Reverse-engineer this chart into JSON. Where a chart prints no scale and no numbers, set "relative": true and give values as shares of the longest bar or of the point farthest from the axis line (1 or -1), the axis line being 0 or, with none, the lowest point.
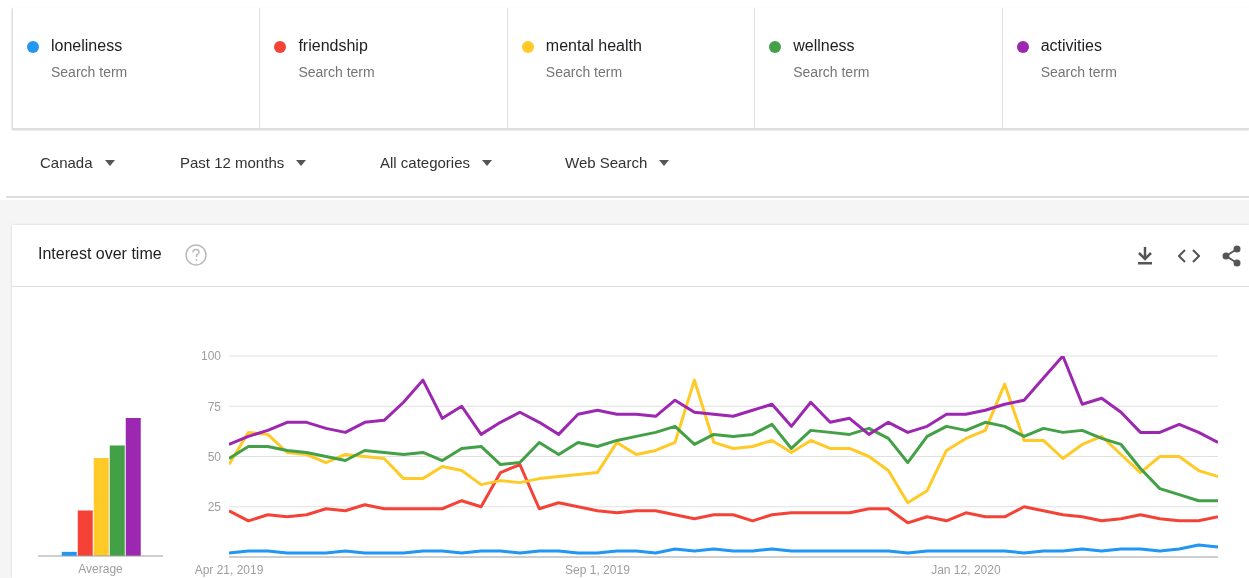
{
  "chart_data": [
    {
      "type": "bar",
      "relative": true,
      "categories": [
        "Average"
      ],
      "series": [
        {
          "color": "#2196f3",
          "values": [
            0.03
          ]
        },
        {
          "color": "#f44336",
          "values": [
            0.33
          ]
        },
        {
          "color": "#ffca28",
          "values": [
            0.71
          ]
        },
        {
          "color": "#43a047",
          "values": [
            0.8
          ]
        },
        {
          "color": "#9c27b0",
          "values": [
            1
          ]
        }
      ]
    },
    {
      "type": "line",
      "title": "Interest over time",
      "legend": "top",
      "grid": "y",
      "marker": "none",
      "line_style": "solid",
      "annotations": [
        "Search term",
        "Search term",
        "Search term",
        "Search term",
        "Search term",
        "Canada",
        "Past 12 months",
        "All categories",
        "Web Search"
      ],
      "x": [
        "2019-04-21",
        "2019-04-28",
        "2019-05-05",
        "2019-05-12",
        "2019-05-19",
        "2019-05-26",
        "2019-06-02",
        "2019-06-09",
        "2019-06-16",
        "2019-06-23",
        "2019-06-30",
        "2019-07-07",
        "2019-07-14",
        "2019-07-21",
        "2019-07-28",
        "2019-08-04",
        "2019-08-11",
        "2019-08-18",
        "2019-08-25",
        "2019-09-01",
        "2019-09-08",
        "2019-09-15",
        "2019-09-22",
        "2019-09-29",
        "2019-10-06",
        "2019-10-13",
        "2019-10-20",
        "2019-10-27",
        "2019-11-03",
        "2019-11-10",
        "2019-11-17",
        "2019-11-24",
        "2019-12-01",
        "2019-12-08",
        "2019-12-15",
        "2019-12-22",
        "2019-12-29",
        "2020-01-05",
        "2020-01-12",
        "2020-01-19",
        "2020-01-26",
        "2020-02-02",
        "2020-02-09",
        "2020-02-16",
        "2020-02-23",
        "2020-03-01",
        "2020-03-08",
        "2020-03-15",
        "2020-03-22",
        "2020-03-29",
        "2020-04-05",
        "2020-04-12"
      ],
      "xlim": [
        "2019-04-21",
        "2020-04-12"
      ],
      "xticks": [
        {
          "value": "2019-04-21",
          "label": "Apr 21, 2019"
        },
        {
          "value": "2019-09-01",
          "label": "Sep 1, 2019"
        },
        {
          "value": "2020-01-12",
          "label": "Jan 12, 2020"
        }
      ],
      "ylim": [
        0,
        100
      ],
      "yticks": [
        25,
        50,
        75,
        100
      ],
      "series": [
        {
          "name": "loneliness",
          "color": "#2196f3",
          "values": [
            2,
            3,
            3,
            2,
            2,
            2,
            3,
            2,
            2,
            2,
            3,
            3,
            2,
            3,
            3,
            2,
            3,
            3,
            2,
            2,
            3,
            3,
            2,
            4,
            3,
            4,
            3,
            3,
            4,
            3,
            3,
            3,
            3,
            3,
            3,
            2,
            3,
            3,
            3,
            3,
            3,
            2,
            3,
            3,
            4,
            3,
            4,
            4,
            3,
            4,
            6,
            5
          ]
        },
        {
          "name": "friendship",
          "color": "#f44336",
          "values": [
            23,
            18,
            21,
            20,
            21,
            24,
            23,
            26,
            24,
            24,
            24,
            24,
            28,
            25,
            42,
            46,
            24,
            27,
            25,
            23,
            22,
            23,
            23,
            21,
            19,
            21,
            21,
            18,
            21,
            22,
            22,
            22,
            22,
            24,
            24,
            17,
            20,
            18,
            22,
            20,
            20,
            25,
            23,
            21,
            20,
            18,
            19,
            21,
            19,
            18,
            18,
            20
          ]
        },
        {
          "name": "mental health",
          "color": "#ffca28",
          "values": [
            46,
            62,
            61,
            52,
            51,
            47,
            51,
            50,
            49,
            39,
            39,
            45,
            43,
            36,
            38,
            37,
            39,
            40,
            41,
            42,
            57,
            51,
            53,
            57,
            88,
            57,
            54,
            55,
            58,
            52,
            58,
            54,
            54,
            50,
            43,
            27,
            33,
            53,
            59,
            63,
            86,
            58,
            58,
            49,
            56,
            60,
            51,
            42,
            50,
            50,
            43,
            40
          ]
        },
        {
          "name": "wellness",
          "color": "#43a047",
          "values": [
            49,
            55,
            55,
            53,
            52,
            50,
            48,
            53,
            52,
            51,
            52,
            48,
            54,
            55,
            46,
            47,
            57,
            51,
            57,
            55,
            58,
            60,
            62,
            65,
            56,
            61,
            60,
            61,
            66,
            54,
            63,
            62,
            61,
            64,
            59,
            47,
            60,
            65,
            63,
            67,
            65,
            60,
            64,
            62,
            63,
            59,
            56,
            44,
            34,
            31,
            28,
            28
          ]
        },
        {
          "name": "activities",
          "color": "#9c27b0",
          "values": [
            56,
            60,
            63,
            67,
            67,
            64,
            62,
            67,
            68,
            77,
            88,
            69,
            75,
            61,
            67,
            72,
            67,
            61,
            71,
            73,
            71,
            71,
            70,
            78,
            72,
            71,
            70,
            73,
            76,
            65,
            77,
            67,
            69,
            61,
            67,
            62,
            65,
            71,
            71,
            73,
            76,
            78,
            89,
            100,
            76,
            79,
            72,
            62,
            62,
            66,
            62,
            57
          ]
        }
      ]
    }
  ]
}
